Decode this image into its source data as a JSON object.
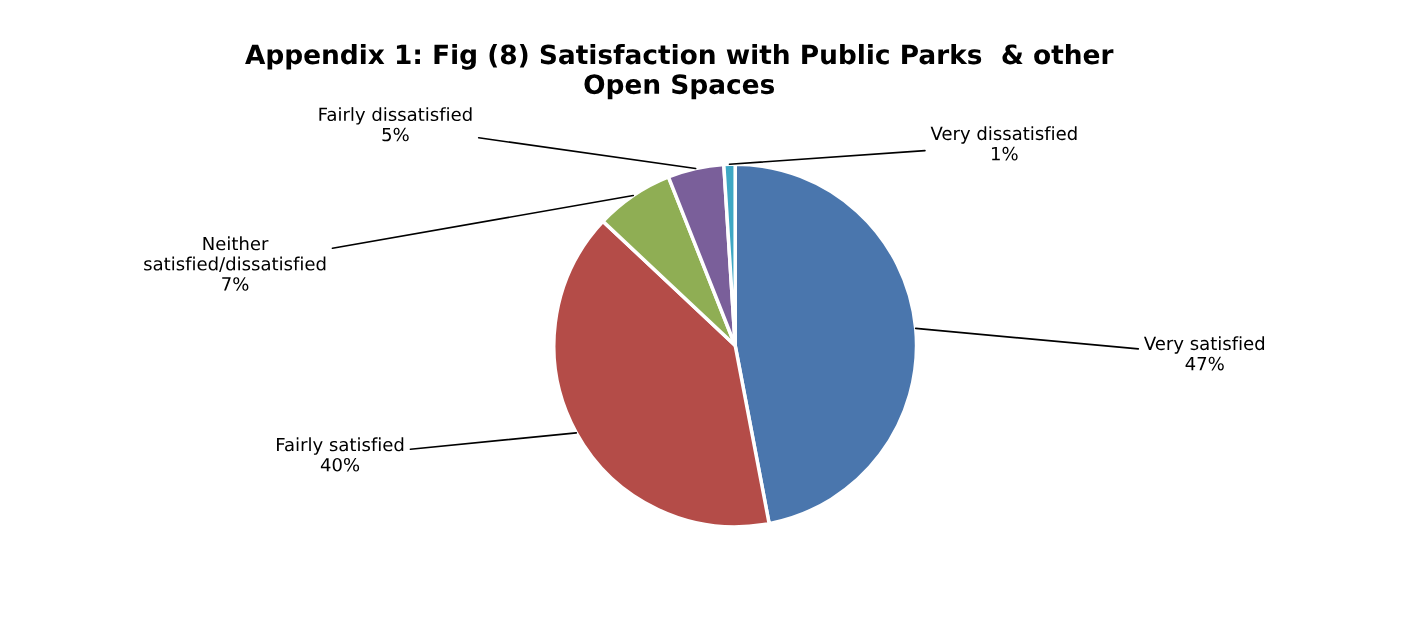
{
  "chart_data": {
    "type": "pie",
    "title": "Appendix 1: Fig (8) Satisfaction with Public Parks  & other\nOpen Spaces",
    "categories": [
      "Very satisfied",
      "Fairly satisfied",
      "Neither\nsatisfied/dissatisfied",
      "Fairly dissatisfied",
      "Very dissatisfied"
    ],
    "values": [
      47,
      40,
      7,
      5,
      1
    ],
    "colors": [
      "#4a76ad",
      "#b44c48",
      "#8fae54",
      "#7a5f9a",
      "#3fa7c4"
    ],
    "value_labels": [
      "47%",
      "40%",
      "7%",
      "5%",
      "1%"
    ],
    "legend": false
  }
}
